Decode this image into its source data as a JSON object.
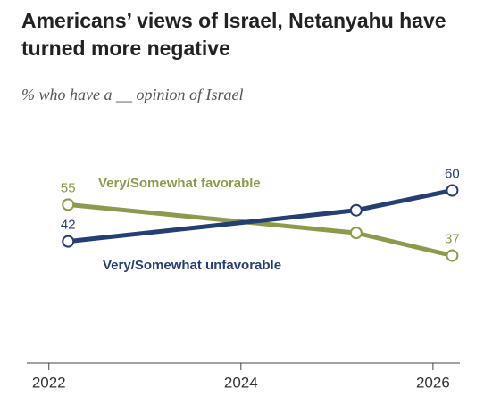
{
  "chart_data": {
    "type": "line",
    "title": "Americans’ views of Israel, Netanyahu have turned more negative",
    "subtitle": "% who have a __ opinion of Israel",
    "x": [
      2022.2,
      2025.2,
      2026.2
    ],
    "series": [
      {
        "name": "Very/Somewhat favorable",
        "color": "#8d9a4b",
        "values": [
          55,
          45,
          37
        ]
      },
      {
        "name": "Very/Somewhat unfavorable",
        "color": "#263f73",
        "values": [
          42,
          53,
          60
        ]
      }
    ],
    "xlim": [
      2021.77,
      2026.28
    ],
    "xticks": [
      2022,
      2024,
      2026
    ],
    "ylim": [
      0,
      80
    ]
  }
}
